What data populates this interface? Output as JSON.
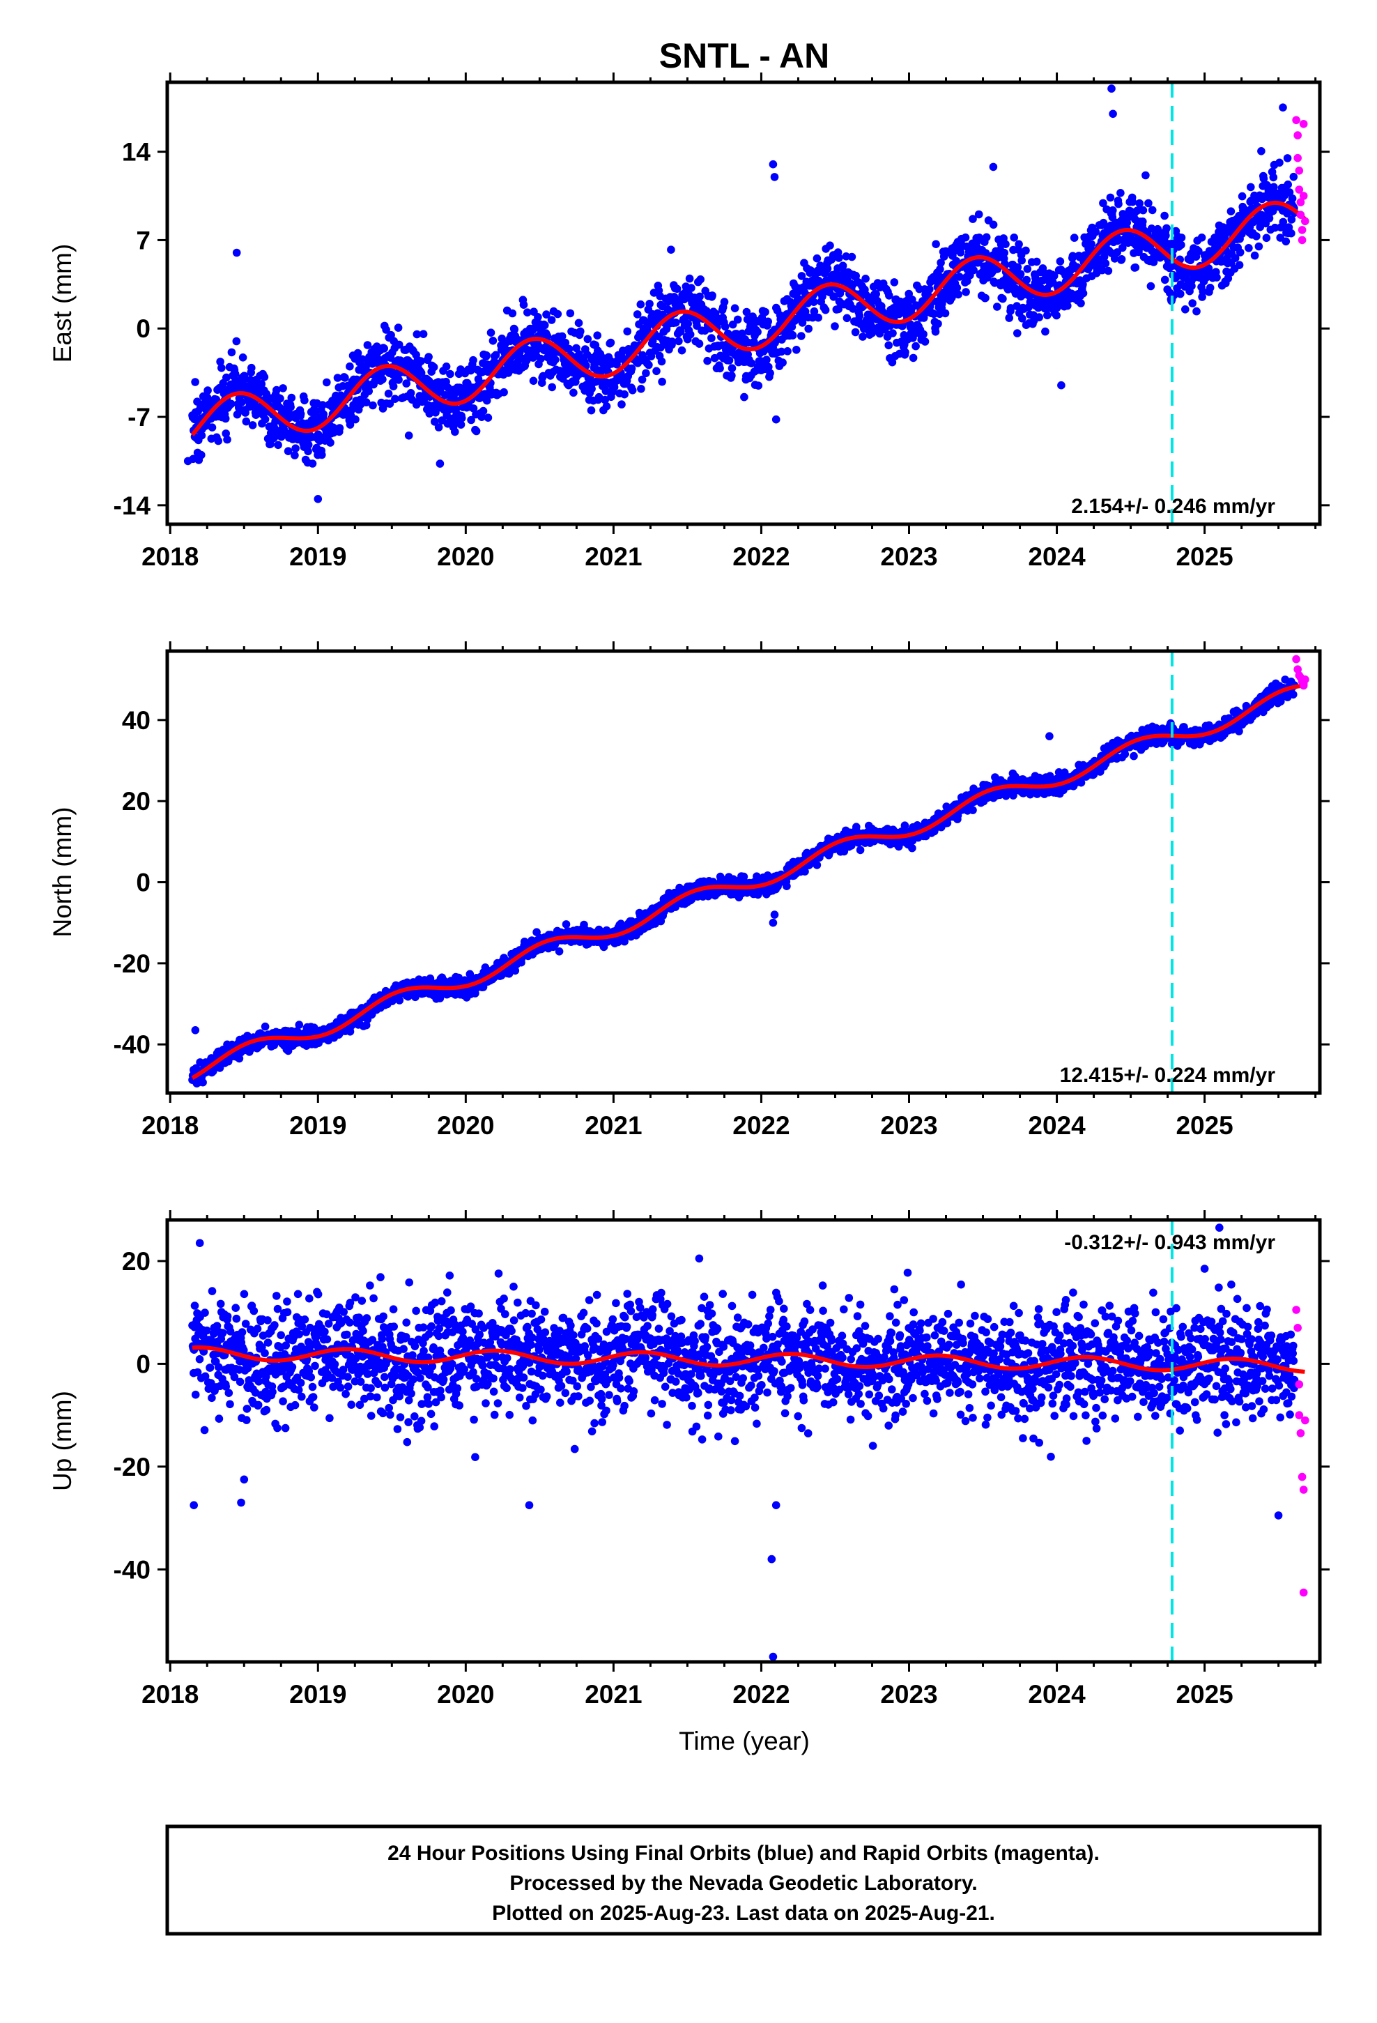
{
  "chart_data": {
    "type": "scatter",
    "title": "SNTL - AN",
    "x_ticks": [
      "2018",
      "2019",
      "2020",
      "2021",
      "2022",
      "2023",
      "2024",
      "2025"
    ],
    "xlabel": "Time (year)",
    "xlim": [
      2017.98,
      2025.78
    ],
    "reference_line_year": 2024.78,
    "panels": [
      {
        "ylabel": "East (mm)",
        "ylim": [
          -15.5,
          19.5
        ],
        "y_ticks": [
          "14",
          "7",
          "0",
          "-7",
          "-14"
        ],
        "y_tick_values": [
          14,
          7,
          0,
          -7,
          -14
        ],
        "rate_label": "2.154+/- 0.246 mm/yr",
        "rate_position": "bottom-right",
        "model": {
          "start_year": 2018.15,
          "start_value": -7.8,
          "rate_mm_per_yr": 2.154,
          "annual_amplitude": 2.0,
          "annual_peak_year_fraction": 0.45
        },
        "noise_sd": 1.4,
        "rapid_points": [
          [
            2025.62,
            16.5
          ],
          [
            2025.63,
            15.3
          ],
          [
            2025.63,
            13.5
          ],
          [
            2025.64,
            12.5
          ],
          [
            2025.64,
            11.0
          ],
          [
            2025.65,
            10.0
          ],
          [
            2025.65,
            9.0
          ],
          [
            2025.66,
            7.8
          ],
          [
            2025.66,
            7.0
          ],
          [
            2025.67,
            16.2
          ],
          [
            2025.67,
            10.5
          ],
          [
            2025.68,
            8.5
          ]
        ],
        "outlier_points": [
          [
            2024.37,
            19.0
          ],
          [
            2024.38,
            17.0
          ],
          [
            2022.08,
            13.0
          ],
          [
            2022.09,
            12.0
          ],
          [
            2023.57,
            12.8
          ],
          [
            2024.03,
            -4.5
          ],
          [
            2019.0,
            -13.5
          ],
          [
            2018.12,
            -10.5
          ],
          [
            2022.1,
            -7.2
          ],
          [
            2018.45,
            6.0
          ],
          [
            2025.53,
            17.5
          ]
        ]
      },
      {
        "ylabel": "North (mm)",
        "ylim": [
          -52,
          57
        ],
        "y_ticks": [
          "40",
          "20",
          "0",
          "-20",
          "-40"
        ],
        "y_tick_values": [
          40,
          20,
          0,
          -20,
          -40
        ],
        "rate_label": "12.415+/- 0.224 mm/yr",
        "rate_position": "bottom-right",
        "model": {
          "start_year": 2018.15,
          "start_value": -46.5,
          "rate_mm_per_yr": 12.415,
          "annual_amplitude": 2.2,
          "annual_peak_year_fraction": 0.55
        },
        "noise_sd": 1.1,
        "rapid_points": [
          [
            2025.62,
            55.0
          ],
          [
            2025.63,
            52.5
          ],
          [
            2025.64,
            51.0
          ],
          [
            2025.65,
            50.5
          ],
          [
            2025.66,
            49.5
          ],
          [
            2025.67,
            49.0
          ],
          [
            2025.67,
            48.5
          ],
          [
            2025.68,
            50.0
          ]
        ],
        "outlier_points": [
          [
            2022.08,
            -10.0
          ],
          [
            2022.09,
            -8.0
          ],
          [
            2018.17,
            -36.5
          ],
          [
            2023.95,
            36.0
          ]
        ]
      },
      {
        "ylabel": "Up (mm)",
        "ylim": [
          -58,
          28
        ],
        "y_ticks": [
          "20",
          "0",
          "-20",
          "-40"
        ],
        "y_tick_values": [
          20,
          0,
          -20,
          -40
        ],
        "rate_label": "-0.312+/- 0.943 mm/yr",
        "rate_position": "top-right",
        "model": {
          "start_year": 2018.15,
          "start_value": 2.0,
          "rate_mm_per_yr": -0.312,
          "annual_amplitude": 1.2,
          "annual_peak_year_fraction": 0.2
        },
        "noise_sd": 5.2,
        "rapid_points": [
          [
            2025.62,
            10.5
          ],
          [
            2025.63,
            7.0
          ],
          [
            2025.64,
            -4.0
          ],
          [
            2025.64,
            -10.0
          ],
          [
            2025.65,
            -13.5
          ],
          [
            2025.66,
            -22.0
          ],
          [
            2025.67,
            -24.5
          ],
          [
            2025.67,
            -44.5
          ],
          [
            2025.68,
            -11.0
          ]
        ],
        "outlier_points": [
          [
            2022.08,
            -57.0
          ],
          [
            2022.07,
            -38.0
          ],
          [
            2018.16,
            -27.5
          ],
          [
            2018.48,
            -27.0
          ],
          [
            2018.5,
            -22.5
          ],
          [
            2020.43,
            -27.5
          ],
          [
            2018.2,
            23.5
          ],
          [
            2021.58,
            20.5
          ],
          [
            2025.1,
            26.5
          ],
          [
            2025.5,
            -29.5
          ],
          [
            2022.1,
            -27.5
          ],
          [
            2025.0,
            18.5
          ]
        ]
      }
    ]
  },
  "footer": {
    "line1": "24 Hour Positions Using Final Orbits (blue) and Rapid Orbits (magenta).",
    "line2": "Processed by the Nevada Geodetic Laboratory.",
    "line3": "Plotted on 2025-Aug-23. Last data on 2025-Aug-21."
  },
  "colors": {
    "final_orbits": "#0000ff",
    "rapid_orbits": "#ff00ff",
    "model": "#ff0000",
    "reference_line": "#00e5e5",
    "frame": "#000000"
  }
}
